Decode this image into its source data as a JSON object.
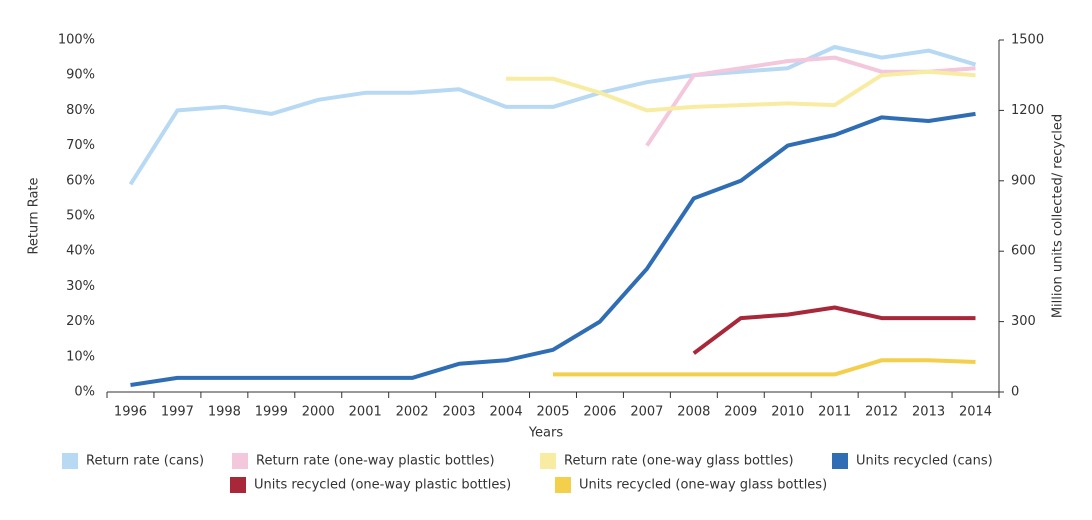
{
  "chart_data": {
    "type": "line",
    "xlabel": "Years",
    "ylabel": "Return Rate",
    "y2label": "Million units collected/ recycled",
    "categories": [
      "1996",
      "1997",
      "1998",
      "1999",
      "2000",
      "2001",
      "2002",
      "2003",
      "2004",
      "2005",
      "2006",
      "2007",
      "2008",
      "2009",
      "2010",
      "2011",
      "2012",
      "2013",
      "2014"
    ],
    "ylim": [
      0,
      100
    ],
    "yticks": [
      {
        "value": 0,
        "label": "0%"
      },
      {
        "value": 10,
        "label": "10%"
      },
      {
        "value": 20,
        "label": "20%"
      },
      {
        "value": 30,
        "label": "30%"
      },
      {
        "value": 40,
        "label": "40%"
      },
      {
        "value": 50,
        "label": "50%"
      },
      {
        "value": 60,
        "label": "60%"
      },
      {
        "value": 70,
        "label": "70%"
      },
      {
        "value": 80,
        "label": "80%"
      },
      {
        "value": 90,
        "label": "90%"
      },
      {
        "value": 100,
        "label": "100%"
      }
    ],
    "y2lim": [
      0,
      1500
    ],
    "y2ticks": [
      0,
      300,
      600,
      900,
      1200,
      1500
    ],
    "series": [
      {
        "name": "Return rate (cans)",
        "color": "#b7d9f3",
        "values": [
          59,
          80,
          81,
          79,
          83,
          85,
          85,
          86,
          81,
          81,
          85,
          88,
          90,
          91,
          92,
          98,
          95,
          97,
          93
        ]
      },
      {
        "name": "Return rate (one-way plastic bottles)",
        "color": "#f3c7dc",
        "values": [
          null,
          null,
          null,
          null,
          null,
          null,
          null,
          null,
          null,
          null,
          null,
          70,
          90,
          92,
          94,
          95,
          91,
          91,
          92
        ]
      },
      {
        "name": "Return rate (one-way glass bottles)",
        "color": "#f8eca2",
        "values": [
          null,
          null,
          null,
          null,
          null,
          null,
          null,
          null,
          89,
          89,
          85,
          80,
          81,
          81.5,
          82,
          81.5,
          90,
          91,
          90
        ]
      },
      {
        "name": "Units recycled (cans)",
        "color": "#2f6db4",
        "axis": "y2",
        "values": [
          30,
          60,
          60,
          60,
          60,
          60,
          60,
          120,
          135,
          180,
          300,
          525,
          825,
          900,
          1050,
          1095,
          1170,
          1155,
          1185
        ]
      },
      {
        "name": "Units recycled (one-way plastic bottles)",
        "color": "#a8283a",
        "axis": "y2",
        "values": [
          null,
          null,
          null,
          null,
          null,
          null,
          null,
          null,
          null,
          null,
          null,
          null,
          165,
          315,
          330,
          360,
          315,
          315,
          315
        ]
      },
      {
        "name": "Units recycled (one-way glass bottles)",
        "color": "#f4cf4b",
        "axis": "y2",
        "values": [
          null,
          null,
          null,
          null,
          null,
          null,
          null,
          null,
          null,
          75,
          75,
          75,
          75,
          75,
          75,
          75,
          135,
          135,
          128
        ]
      }
    ]
  }
}
